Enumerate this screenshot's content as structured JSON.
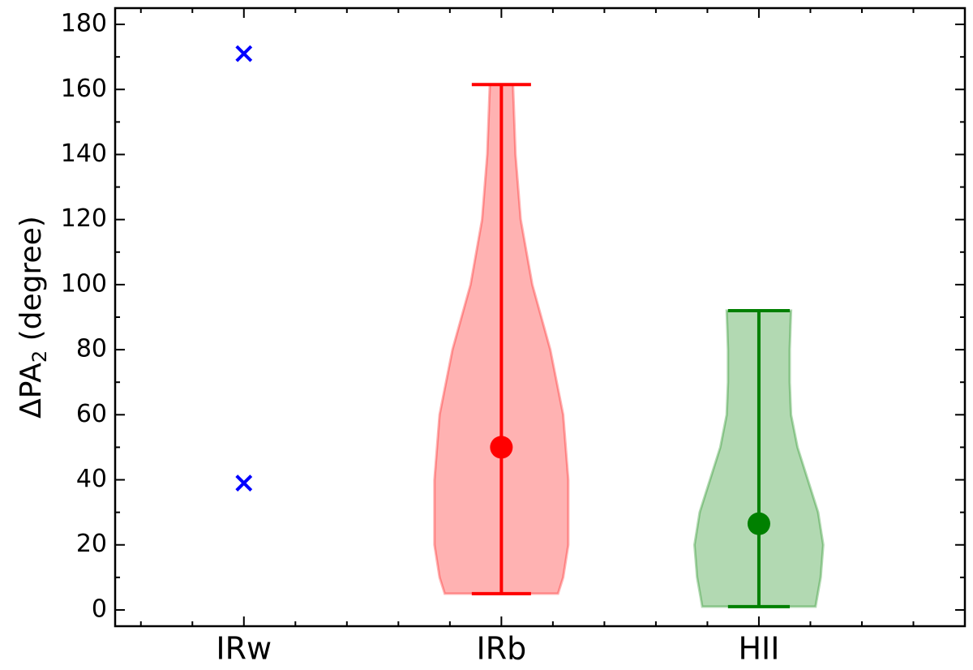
{
  "chart_data": {
    "type": "violin",
    "y_label": "ΔPA",
    "y_label_sub": "2",
    "y_label_rest": " (degree)",
    "categories": [
      "IRw",
      "IRb",
      "HII"
    ],
    "xlim": [
      0.5,
      3.8
    ],
    "xminor": [
      0.6,
      0.8,
      1.2,
      1.4,
      1.6,
      1.8,
      2.2,
      2.4,
      2.6,
      2.8,
      3.2,
      3.4,
      3.6
    ],
    "ylim": [
      -5,
      185
    ],
    "yticks": [
      0,
      20,
      40,
      60,
      80,
      100,
      120,
      140,
      160,
      180
    ],
    "yminor": [
      10,
      30,
      50,
      70,
      90,
      110,
      130,
      150,
      170
    ],
    "points": {
      "category": 0,
      "color": "#0000ff",
      "marker": "x",
      "values": [
        171,
        39
      ]
    },
    "violins": [
      {
        "category": 1,
        "color": "#ff0000",
        "min": 5,
        "max": 161.5,
        "median": 50,
        "cap_width": 0.115,
        "profile_y": [
          5,
          10,
          20,
          40,
          60,
          80,
          100,
          120,
          140,
          161.5
        ],
        "profile_width": [
          0.22,
          0.24,
          0.26,
          0.26,
          0.24,
          0.19,
          0.12,
          0.075,
          0.055,
          0.045
        ]
      },
      {
        "category": 2,
        "color": "#008000",
        "min": 1,
        "max": 92,
        "median": 26.5,
        "cap_width": 0.12,
        "profile_y": [
          1,
          10,
          20,
          30,
          40,
          50,
          60,
          70,
          80,
          92
        ],
        "profile_width": [
          0.22,
          0.24,
          0.25,
          0.23,
          0.19,
          0.15,
          0.125,
          0.12,
          0.12,
          0.125
        ]
      }
    ]
  }
}
